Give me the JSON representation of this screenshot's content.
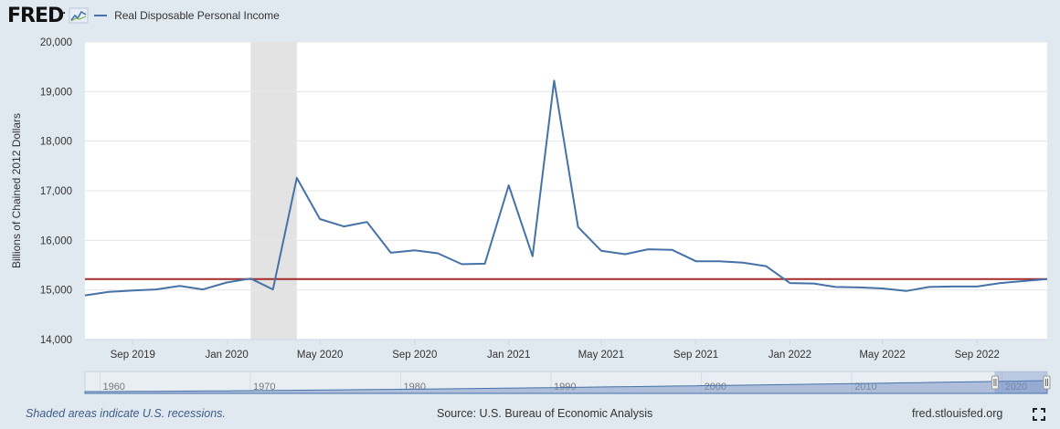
{
  "header": {
    "logo": "FRED",
    "legend_label": "Real Disposable Personal Income"
  },
  "footer": {
    "recession_note": "Shaded areas indicate U.S. recessions.",
    "source": "Source: U.S. Bureau of Economic Analysis",
    "site": "fred.stlouisfed.org"
  },
  "colors": {
    "series": "#4572a7",
    "reference_line": "#a52a2a",
    "recession": "#e3e3e3",
    "background": "#e1e9f0",
    "navigator_fill": "#7f99c4"
  },
  "chart_data": {
    "type": "line",
    "ylabel": "Billions of Chained 2012 Dollars",
    "ylim": [
      14000,
      20000
    ],
    "yticks": [
      14000,
      15000,
      16000,
      17000,
      18000,
      19000,
      20000
    ],
    "ytick_labels": [
      "14,000",
      "15,000",
      "16,000",
      "17,000",
      "18,000",
      "19,000",
      "20,000"
    ],
    "xlim": [
      "2019-07-01",
      "2022-12-01"
    ],
    "xtick_dates": [
      "2019-09-01",
      "2020-01-01",
      "2020-05-01",
      "2020-09-01",
      "2021-01-01",
      "2021-05-01",
      "2021-09-01",
      "2022-01-01",
      "2022-05-01",
      "2022-09-01"
    ],
    "xtick_labels": [
      "Sep 2019",
      "Jan 2020",
      "May 2020",
      "Sep 2020",
      "Jan 2021",
      "May 2021",
      "Sep 2021",
      "Jan 2022",
      "May 2022",
      "Sep 2022"
    ],
    "grid": true,
    "legend_position": "top-left",
    "recession": {
      "start": "2020-02-01",
      "end": "2020-04-01"
    },
    "reference_line": 15220,
    "series": [
      {
        "name": "Real Disposable Personal Income",
        "x": [
          "2019-07-01",
          "2019-08-01",
          "2019-09-01",
          "2019-10-01",
          "2019-11-01",
          "2019-12-01",
          "2020-01-01",
          "2020-02-01",
          "2020-03-01",
          "2020-04-01",
          "2020-05-01",
          "2020-06-01",
          "2020-07-01",
          "2020-08-01",
          "2020-09-01",
          "2020-10-01",
          "2020-11-01",
          "2020-12-01",
          "2021-01-01",
          "2021-02-01",
          "2021-03-01",
          "2021-04-01",
          "2021-05-01",
          "2021-06-01",
          "2021-07-01",
          "2021-08-01",
          "2021-09-01",
          "2021-10-01",
          "2021-11-01",
          "2021-12-01",
          "2022-01-01",
          "2022-02-01",
          "2022-03-01",
          "2022-04-01",
          "2022-05-01",
          "2022-06-01",
          "2022-07-01",
          "2022-08-01",
          "2022-09-01",
          "2022-10-01",
          "2022-11-01",
          "2022-12-01"
        ],
        "values": [
          14890,
          14960,
          14990,
          15010,
          15080,
          15010,
          15150,
          15230,
          15010,
          17260,
          16430,
          16280,
          16370,
          15750,
          15800,
          15740,
          15520,
          15530,
          17110,
          15680,
          19220,
          16270,
          15790,
          15720,
          15820,
          15810,
          15580,
          15580,
          15550,
          15480,
          15140,
          15130,
          15060,
          15050,
          15030,
          14980,
          15060,
          15070,
          15070,
          15140,
          15180,
          15220
        ]
      }
    ],
    "navigator": {
      "tick_labels": [
        "1960",
        "1970",
        "1980",
        "1990",
        "2000",
        "2010",
        "2020"
      ],
      "start_year": 1959,
      "end_year": 2023
    }
  }
}
